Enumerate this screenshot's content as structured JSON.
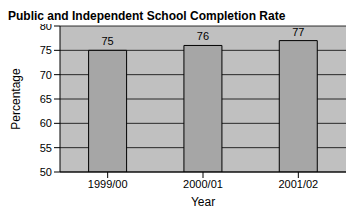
{
  "chart_data": {
    "type": "bar",
    "title": "Public and Independent School Completion Rate",
    "x_label": "Year",
    "y_label": "Percentage",
    "categories": [
      "1999/00",
      "2000/01",
      "2001/02"
    ],
    "values": [
      75,
      76,
      77
    ],
    "color": "#a6a6a6",
    "ylim": [
      50,
      80
    ],
    "yticks": [
      50,
      55,
      60,
      65,
      70,
      75,
      80
    ],
    "grid": true,
    "data_labels": true
  }
}
